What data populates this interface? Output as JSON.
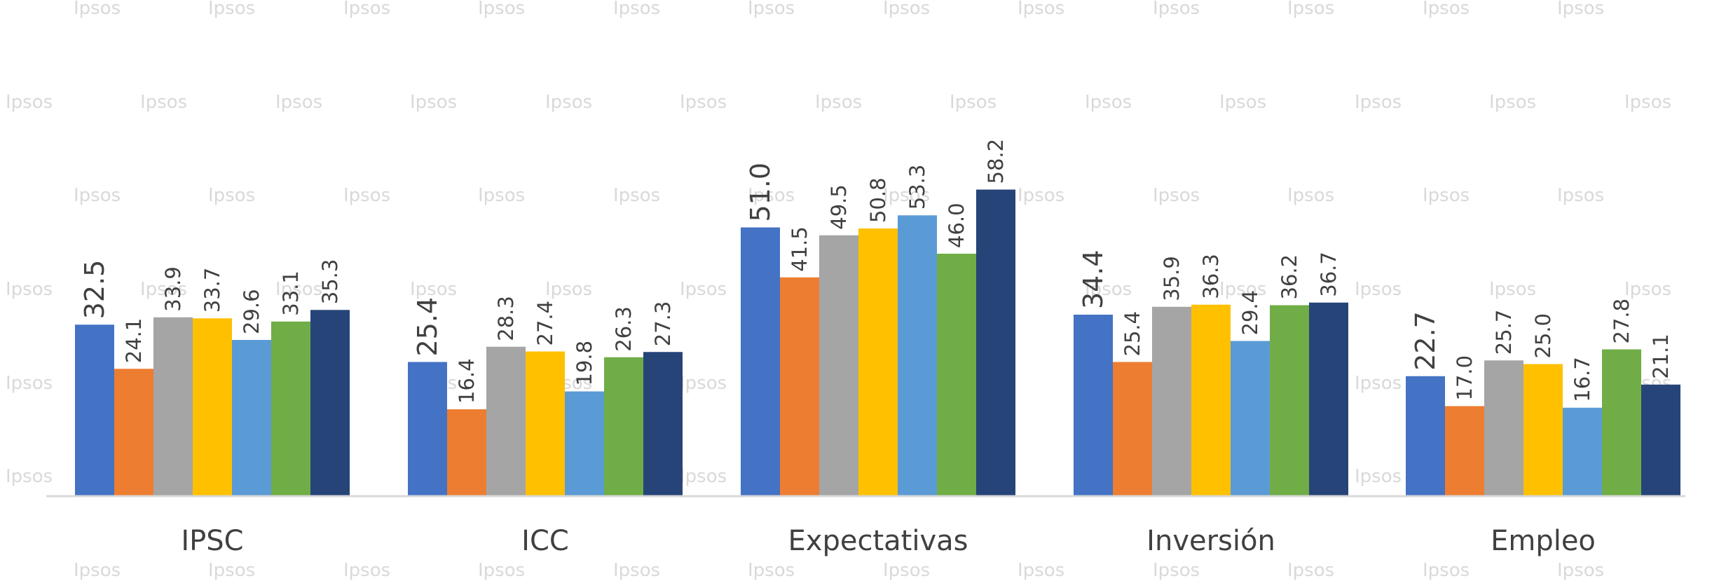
{
  "watermark": "Ipsos",
  "chart_data": {
    "type": "bar",
    "categories": [
      "IPSC",
      "ICC",
      "Expectativas",
      "Inversión",
      "Empleo"
    ],
    "series": [
      {
        "color": "#4472C4",
        "values": [
          32.5,
          25.4,
          51.0,
          34.4,
          22.7
        ],
        "labels": [
          "32.5",
          "25.4",
          "51.0",
          "34.4",
          "22.7"
        ]
      },
      {
        "color": "#ED7D31",
        "values": [
          24.1,
          16.4,
          41.5,
          25.4,
          17.0
        ],
        "labels": [
          "24.1",
          "16.4",
          "41.5",
          "25.4",
          "17.0"
        ]
      },
      {
        "color": "#A5A5A5",
        "values": [
          33.9,
          28.3,
          49.5,
          35.9,
          25.7
        ],
        "labels": [
          "33.9",
          "28.3",
          "49.5",
          "35.9",
          "25.7"
        ]
      },
      {
        "color": "#FFC000",
        "values": [
          33.7,
          27.4,
          50.8,
          36.3,
          25.0
        ],
        "labels": [
          "33.7",
          "27.4",
          "50.8",
          "36.3",
          "25.0"
        ]
      },
      {
        "color": "#5B9BD5",
        "values": [
          29.6,
          19.8,
          53.3,
          29.4,
          16.7
        ],
        "labels": [
          "29.6",
          "19.8",
          "53.3",
          "29.4",
          "16.7"
        ]
      },
      {
        "color": "#70AD47",
        "values": [
          33.1,
          26.3,
          46.0,
          36.2,
          27.8
        ],
        "labels": [
          "33.1",
          "26.3",
          "46.0",
          "36.2",
          "27.8"
        ]
      },
      {
        "color": "#264478",
        "values": [
          35.3,
          27.3,
          58.2,
          36.7,
          21.1
        ],
        "labels": [
          "35.3",
          "27.3",
          "58.2",
          "36.7",
          "21.1"
        ]
      }
    ],
    "ylim": [
      0,
      95
    ],
    "axis_color": "#D9D9D9",
    "label_color": "#404040"
  }
}
